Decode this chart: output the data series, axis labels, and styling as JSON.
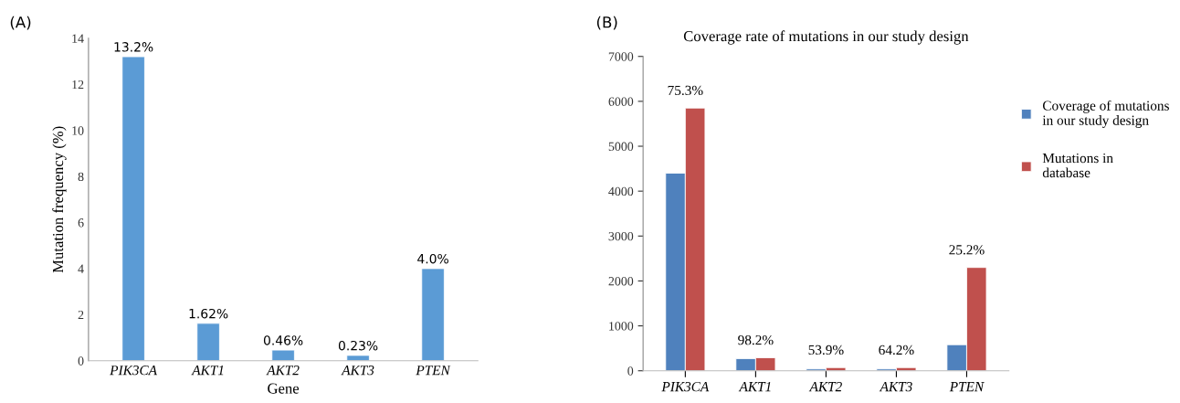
{
  "chart_data": [
    {
      "type": "bar",
      "annotations": [
        "(A)"
      ],
      "xlabel": "Gene",
      "ylabel": "Mutation frequency (%)",
      "categories": [
        "PIK3CA",
        "AKT1",
        "AKT2",
        "AKT3",
        "PTEN"
      ],
      "values": [
        13.2,
        1.62,
        0.46,
        0.23,
        4.0
      ],
      "color": "#5b9bd5",
      "value_labels": [
        "13.2%",
        "1.62%",
        "0.46%",
        "0.23%",
        "4.0%"
      ],
      "ylim": [
        0,
        14
      ],
      "yticks": [
        0,
        2,
        4,
        6,
        8,
        10,
        12,
        14
      ],
      "grid": false
    },
    {
      "type": "bar",
      "title": "Coverage rate of mutations in our study design",
      "annotations": [
        "(B)",
        {
          "text": "75.3%",
          "x": "PIK3CA",
          "y": 5850
        },
        {
          "text": "98.2%",
          "x": "AKT1",
          "y": 290
        },
        {
          "text": "53.9%",
          "x": "AKT2",
          "y": 70
        },
        {
          "text": "64.2%",
          "x": "AKT3",
          "y": 70
        },
        {
          "text": "25.2%",
          "x": "PTEN",
          "y": 2300
        }
      ],
      "categories": [
        "PIK3CA",
        "AKT1",
        "AKT2",
        "AKT3",
        "PTEN"
      ],
      "series": [
        {
          "name": "Coverage of mutations\nin our study design",
          "color": "#4f81bd",
          "values": [
            4400,
            270,
            40,
            40,
            580
          ]
        },
        {
          "name": "Mutations in\ndatabase",
          "color": "#c0504d",
          "values": [
            5850,
            290,
            70,
            70,
            2300
          ]
        }
      ],
      "ylim": [
        0,
        7000
      ],
      "yticks": [
        0,
        1000,
        2000,
        3000,
        4000,
        5000,
        6000,
        7000
      ],
      "grid": false,
      "legend": "right"
    }
  ]
}
